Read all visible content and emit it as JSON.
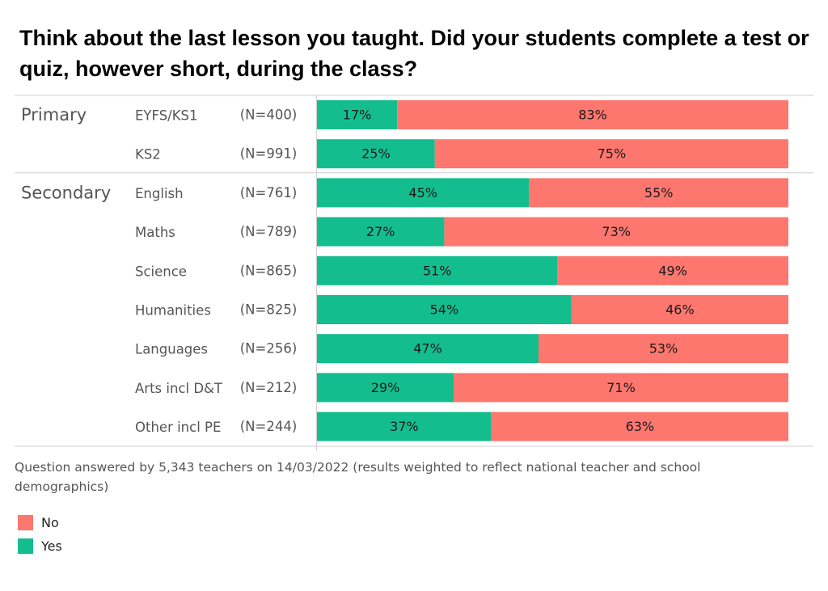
{
  "colors": {
    "yes": "#13bd8e",
    "no": "#fd776f"
  },
  "chart_data": {
    "type": "bar",
    "orientation": "horizontal",
    "stacked": true,
    "title": "Think about the last lesson you taught. Did your students complete a test or quiz, however short, during the class?",
    "groups": [
      {
        "name": "Primary",
        "rows": [
          {
            "label": "EYFS/KS1",
            "n": "(N=400)",
            "yes": 17,
            "no": 83,
            "yes_label": "17%",
            "no_label": "83%"
          },
          {
            "label": "KS2",
            "n": "(N=991)",
            "yes": 25,
            "no": 75,
            "yes_label": "25%",
            "no_label": "75%"
          }
        ]
      },
      {
        "name": "Secondary",
        "rows": [
          {
            "label": "English",
            "n": "(N=761)",
            "yes": 45,
            "no": 55,
            "yes_label": "45%",
            "no_label": "55%"
          },
          {
            "label": "Maths",
            "n": "(N=789)",
            "yes": 27,
            "no": 73,
            "yes_label": "27%",
            "no_label": "73%"
          },
          {
            "label": "Science",
            "n": "(N=865)",
            "yes": 51,
            "no": 49,
            "yes_label": "51%",
            "no_label": "49%"
          },
          {
            "label": "Humanities",
            "n": "(N=825)",
            "yes": 54,
            "no": 46,
            "yes_label": "54%",
            "no_label": "46%"
          },
          {
            "label": "Languages",
            "n": "(N=256)",
            "yes": 47,
            "no": 53,
            "yes_label": "47%",
            "no_label": "53%"
          },
          {
            "label": "Arts incl D&T",
            "n": "(N=212)",
            "yes": 29,
            "no": 71,
            "yes_label": "29%",
            "no_label": "71%"
          },
          {
            "label": "Other incl PE",
            "n": "(N=244)",
            "yes": 37,
            "no": 63,
            "yes_label": "37%",
            "no_label": "63%"
          }
        ]
      }
    ],
    "series": [
      {
        "name": "No",
        "key": "no"
      },
      {
        "name": "Yes",
        "key": "yes"
      }
    ],
    "xlim": [
      0,
      100
    ],
    "legend_position": "bottom-left",
    "grid": false
  },
  "footnote": "Question answered by 5,343 teachers on 14/03/2022 (results weighted to reflect national teacher and school demographics)"
}
